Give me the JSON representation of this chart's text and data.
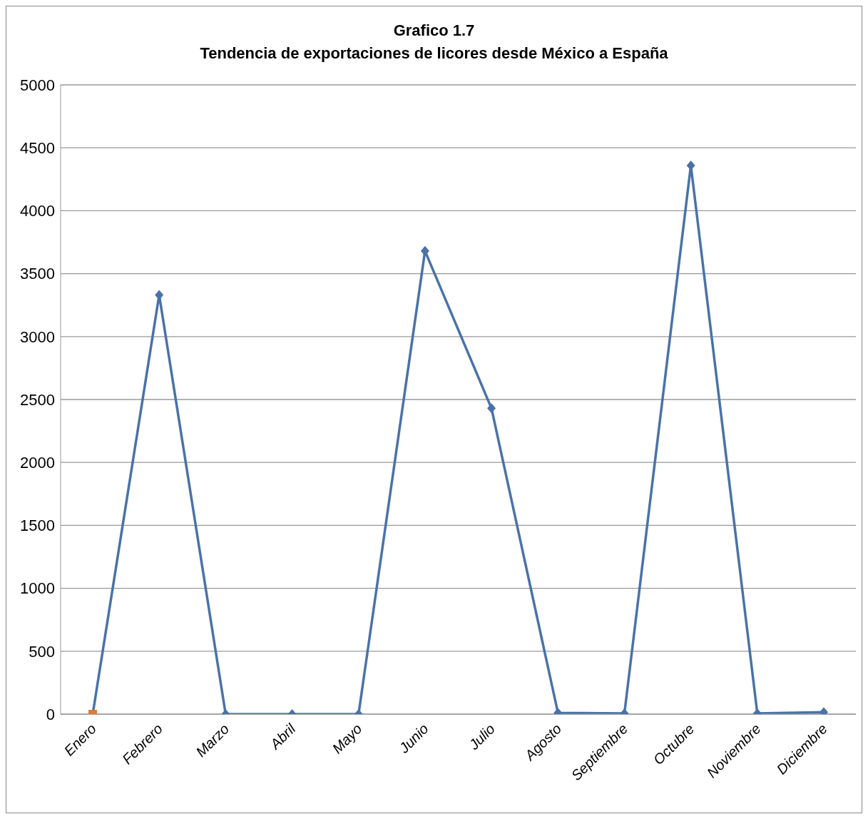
{
  "chart_data": {
    "type": "line",
    "title": "Grafico 1.7",
    "subtitle": "Tendencia de exportaciones de licores desde México a España",
    "categories": [
      "Enero",
      "Febrero",
      "Marzo",
      "Abril",
      "Mayo",
      "Junio",
      "Julio",
      "Agosto",
      "Septiembre",
      "Octubre",
      "Noviembre",
      "Diciembre"
    ],
    "series": [
      {
        "color": "#4a72a8",
        "marker": "diamond",
        "values": [
          0,
          3330,
          0,
          0,
          0,
          3680,
          2430,
          10,
          5,
          4360,
          5,
          15
        ]
      },
      {
        "type": "scatter",
        "color": "#e07b39",
        "marker": "square",
        "values": [
          0,
          null,
          null,
          null,
          null,
          null,
          null,
          null,
          null,
          null,
          null,
          null
        ]
      }
    ],
    "ylim": [
      0,
      5000
    ],
    "yticks": [
      0,
      500,
      1000,
      1500,
      2000,
      2500,
      3000,
      3500,
      4000,
      4500,
      5000
    ],
    "grid": "y"
  }
}
